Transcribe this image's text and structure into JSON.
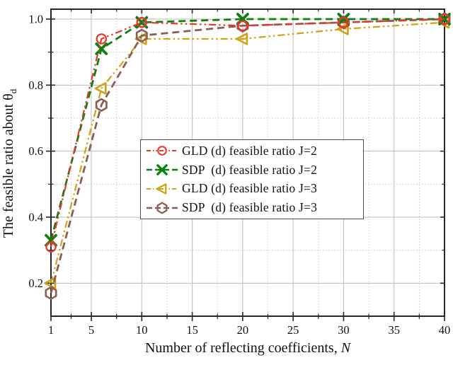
{
  "figure": {
    "xlabel_main": "Number of reflecting coefficients, ",
    "xlabel_italic": "N",
    "ylabel_main": "The feasible ratio about θ",
    "ylabel_sub": "d"
  },
  "colors": {
    "spine": "#262626",
    "major_grid": "#bbbbbb",
    "minor_grid": "#cccccc",
    "tick_label": "#111111"
  },
  "chart_data": {
    "type": "line",
    "title": "",
    "xlabel": "Number of reflecting coefficients, N",
    "ylabel": "The feasible ratio about θ_d",
    "x": [
      1,
      6,
      10,
      20,
      30,
      40
    ],
    "series": [
      {
        "name": "GLD (d) feasible ratio J=2",
        "color": "#e8372d",
        "marker": "circle",
        "dash": "dashdotdot",
        "values": [
          0.31,
          0.94,
          0.99,
          0.98,
          0.99,
          1.0
        ]
      },
      {
        "name": "SDP  (d) feasible ratio J=2",
        "color": "#0e7f11",
        "marker": "x",
        "dash": "dashed",
        "values": [
          0.33,
          0.91,
          0.99,
          1.0,
          1.0,
          1.0
        ]
      },
      {
        "name": "GLD (d) feasible ratio J=3",
        "color": "#d0a112",
        "marker": "triangle-left",
        "dash": "dashdotdot",
        "values": [
          0.2,
          0.79,
          0.94,
          0.94,
          0.97,
          0.99
        ]
      },
      {
        "name": "SDP  (d) feasible ratio J=3",
        "color": "#8c5e53",
        "marker": "hexagon",
        "dash": "dashed",
        "values": [
          0.17,
          0.74,
          0.95,
          0.98,
          0.99,
          1.0
        ]
      }
    ],
    "x_ticks": [
      1,
      5,
      10,
      15,
      20,
      25,
      30,
      35,
      40
    ],
    "y_ticks": [
      0.2,
      0.4,
      0.6,
      0.8,
      1.0
    ],
    "xlim": [
      1,
      40
    ],
    "ylim": [
      0.1,
      1.03
    ],
    "grid": "major solid, minor dotted at midpoints",
    "legend_position": "center"
  }
}
